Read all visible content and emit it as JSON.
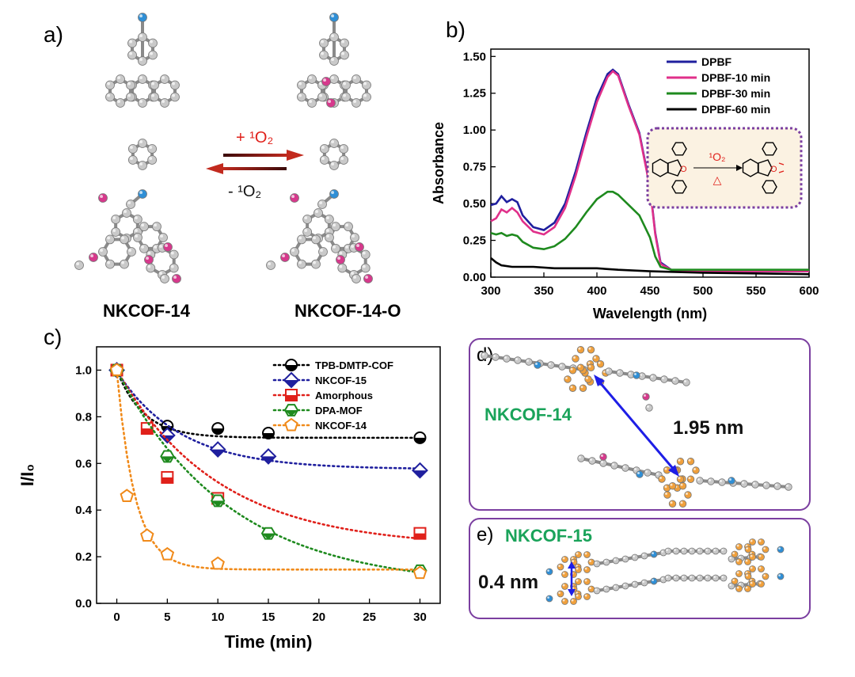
{
  "panels": {
    "a": {
      "label": "a)",
      "left_name": "NKCOF-14",
      "right_name": "NKCOF-14-O",
      "forward": "+ ¹O₂",
      "reverse": "- ¹O₂"
    },
    "b": {
      "label": "b)"
    },
    "c": {
      "label": "c)"
    },
    "d": {
      "label": "d)",
      "name": "NKCOF-14",
      "distance": "1.95 nm"
    },
    "e": {
      "label": "e)",
      "name": "NKCOF-15",
      "distance": "0.4 nm"
    }
  },
  "colors": {
    "carbon": "#c9c9c9",
    "nitrogen": "#2f8fd6",
    "oxygen": "#d6398c",
    "anthracene": "#f0a03c",
    "frame": "#7b3fa0",
    "arrow": "#b0201a",
    "name_green": "#1aa35a"
  },
  "chart_data": [
    {
      "id": "b",
      "type": "line",
      "xlabel": "Wavelength (nm)",
      "ylabel": "Absorbance",
      "xlim": [
        300,
        600
      ],
      "ylim": [
        0,
        1.55
      ],
      "xticks": [
        300,
        350,
        400,
        450,
        500,
        550,
        600
      ],
      "yticks": [
        0.0,
        0.25,
        0.5,
        0.75,
        1.0,
        1.25,
        1.5
      ],
      "legend": "top-right",
      "inset": {
        "reagent_label": "¹O₂",
        "heat_label": "△"
      },
      "series": [
        {
          "name": "DPBF",
          "color": "#1f1f9e",
          "x": [
            300,
            305,
            310,
            315,
            320,
            325,
            330,
            340,
            350,
            360,
            370,
            380,
            390,
            400,
            410,
            415,
            420,
            430,
            440,
            450,
            455,
            460,
            470,
            480,
            500,
            600
          ],
          "y": [
            0.49,
            0.5,
            0.55,
            0.51,
            0.53,
            0.51,
            0.42,
            0.34,
            0.32,
            0.37,
            0.5,
            0.72,
            0.98,
            1.22,
            1.38,
            1.41,
            1.38,
            1.17,
            0.98,
            0.62,
            0.3,
            0.1,
            0.05,
            0.04,
            0.04,
            0.04
          ]
        },
        {
          "name": "DPBF-10 min",
          "color": "#e0308a",
          "x": [
            300,
            305,
            310,
            315,
            320,
            325,
            330,
            340,
            350,
            360,
            370,
            380,
            390,
            400,
            410,
            415,
            420,
            430,
            440,
            450,
            455,
            460,
            470,
            480,
            500,
            600
          ],
          "y": [
            0.38,
            0.4,
            0.46,
            0.44,
            0.47,
            0.44,
            0.38,
            0.31,
            0.29,
            0.34,
            0.47,
            0.69,
            0.95,
            1.19,
            1.36,
            1.4,
            1.37,
            1.16,
            0.97,
            0.61,
            0.29,
            0.09,
            0.05,
            0.04,
            0.04,
            0.04
          ]
        },
        {
          "name": "DPBF-30 min",
          "color": "#1e8a1e",
          "x": [
            300,
            305,
            310,
            315,
            320,
            325,
            330,
            340,
            350,
            360,
            370,
            380,
            390,
            400,
            410,
            415,
            420,
            430,
            440,
            450,
            455,
            460,
            470,
            480,
            500,
            600
          ],
          "y": [
            0.3,
            0.29,
            0.3,
            0.28,
            0.29,
            0.28,
            0.24,
            0.2,
            0.19,
            0.21,
            0.26,
            0.34,
            0.44,
            0.53,
            0.58,
            0.58,
            0.56,
            0.49,
            0.42,
            0.27,
            0.14,
            0.07,
            0.05,
            0.05,
            0.05,
            0.05
          ]
        },
        {
          "name": "DPBF-60 min",
          "color": "#000000",
          "x": [
            300,
            305,
            310,
            320,
            340,
            360,
            380,
            400,
            420,
            450,
            500,
            600
          ],
          "y": [
            0.13,
            0.1,
            0.08,
            0.07,
            0.07,
            0.06,
            0.06,
            0.06,
            0.05,
            0.04,
            0.03,
            0.02
          ]
        }
      ]
    },
    {
      "id": "c",
      "type": "scatter",
      "xlabel": "Time (min)",
      "ylabel": "I/I₀",
      "xlim": [
        -2,
        32
      ],
      "ylim": [
        0,
        1.1
      ],
      "xticks": [
        0,
        5,
        10,
        15,
        20,
        25,
        30
      ],
      "yticks": [
        0.0,
        0.2,
        0.4,
        0.6,
        0.8,
        1.0
      ],
      "legend": "top-right",
      "series": [
        {
          "name": "TPB-DMTP-COF",
          "color": "#000000",
          "marker": "circle",
          "x": [
            0,
            5,
            10,
            15,
            30
          ],
          "y": [
            1.0,
            0.76,
            0.75,
            0.73,
            0.71
          ],
          "fit": {
            "a": 0.29,
            "k": 0.38,
            "c": 0.71
          }
        },
        {
          "name": "NKCOF-15",
          "color": "#1f1f9e",
          "marker": "diamond",
          "x": [
            0,
            5,
            10,
            15,
            30
          ],
          "y": [
            1.0,
            0.72,
            0.66,
            0.63,
            0.57
          ],
          "fit": {
            "a": 0.42,
            "k": 0.16,
            "c": 0.575
          }
        },
        {
          "name": "Amorphous",
          "color": "#e0201a",
          "marker": "square",
          "x": [
            0,
            3,
            5,
            10,
            30
          ],
          "y": [
            1.0,
            0.75,
            0.54,
            0.45,
            0.3
          ],
          "fit": {
            "a": 0.76,
            "k": 0.1,
            "c": 0.24
          }
        },
        {
          "name": "DPA-MOF",
          "color": "#1e8a1e",
          "marker": "hexagon",
          "x": [
            0,
            5,
            10,
            15,
            30
          ],
          "y": [
            1.0,
            0.63,
            0.44,
            0.3,
            0.14
          ],
          "fit": {
            "a": 0.93,
            "k": 0.09,
            "c": 0.07
          }
        },
        {
          "name": "NKCOF-14",
          "color": "#f08a1a",
          "marker": "pentagon",
          "x": [
            0,
            1,
            3,
            5,
            10,
            30
          ],
          "y": [
            1.0,
            0.46,
            0.29,
            0.21,
            0.17,
            0.13
          ],
          "fit": {
            "a": 0.85,
            "k": 0.55,
            "c": 0.145
          }
        }
      ]
    }
  ]
}
